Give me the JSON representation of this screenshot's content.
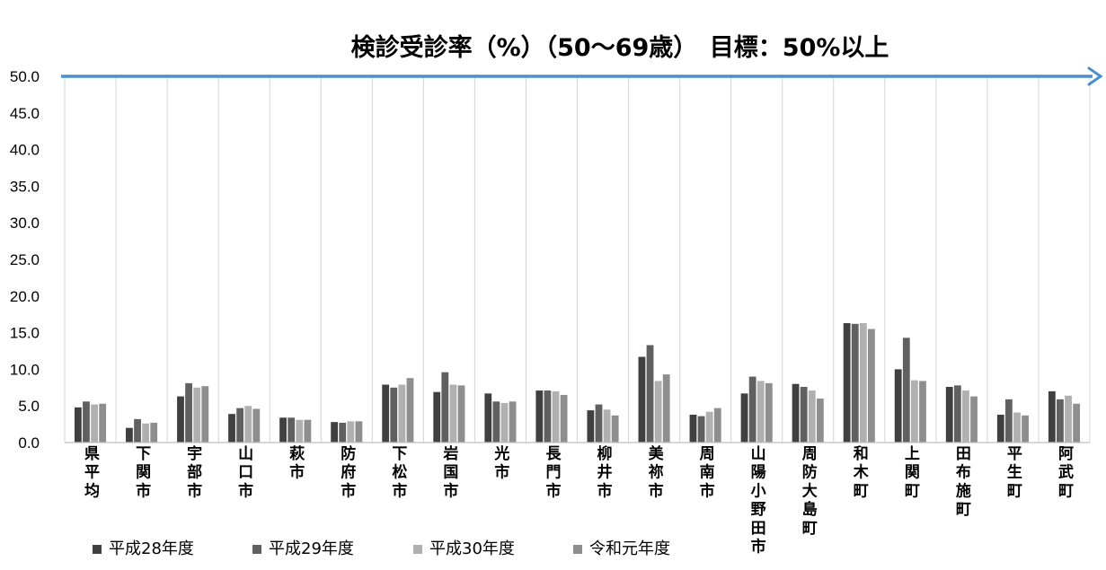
{
  "chart_data": {
    "type": "bar",
    "title": "検診受診率（%）（50～69歳）　目標：50%以上",
    "ylim": [
      0,
      50
    ],
    "yticks": [
      "0.0",
      "5.0",
      "10.0",
      "15.0",
      "20.0",
      "25.0",
      "30.0",
      "35.0",
      "40.0",
      "45.0",
      "50.0"
    ],
    "target_line": 50,
    "grid": "vertical",
    "legend_position": "bottom",
    "categories": [
      "県平均",
      "下関市",
      "宇部市",
      "山口市",
      "萩市",
      "防府市",
      "下松市",
      "岩国市",
      "光市",
      "長門市",
      "柳井市",
      "美祢市",
      "周南市",
      "山陽小野田市",
      "周防大島町",
      "和木町",
      "上関町",
      "田布施町",
      "平生町",
      "阿武町"
    ],
    "series": [
      {
        "name": "平成28年度",
        "color": "#404040",
        "values": [
          4.8,
          2.0,
          6.3,
          3.9,
          3.4,
          2.8,
          7.9,
          6.9,
          6.7,
          7.1,
          4.4,
          11.7,
          3.8,
          6.7,
          8.0,
          16.3,
          10.0,
          7.6,
          3.8,
          7.0
        ]
      },
      {
        "name": "平成29年度",
        "color": "#606060",
        "values": [
          5.6,
          3.2,
          8.1,
          4.7,
          3.4,
          2.7,
          7.5,
          9.6,
          5.6,
          7.1,
          5.2,
          13.3,
          3.6,
          9.0,
          7.6,
          16.2,
          14.3,
          7.8,
          5.9,
          5.9
        ]
      },
      {
        "name": "平成30年度",
        "color": "#b0b0b0",
        "values": [
          5.2,
          2.6,
          7.5,
          5.0,
          3.1,
          2.9,
          7.9,
          7.9,
          5.4,
          7.0,
          4.5,
          8.4,
          4.2,
          8.4,
          7.1,
          16.3,
          8.5,
          7.1,
          4.1,
          6.4
        ]
      },
      {
        "name": "令和元年度",
        "color": "#8e8e8e",
        "values": [
          5.3,
          2.7,
          7.7,
          4.6,
          3.1,
          2.9,
          8.8,
          7.8,
          5.6,
          6.5,
          3.7,
          9.3,
          4.7,
          8.1,
          6.0,
          15.5,
          8.4,
          6.3,
          3.7,
          5.3
        ]
      }
    ]
  }
}
